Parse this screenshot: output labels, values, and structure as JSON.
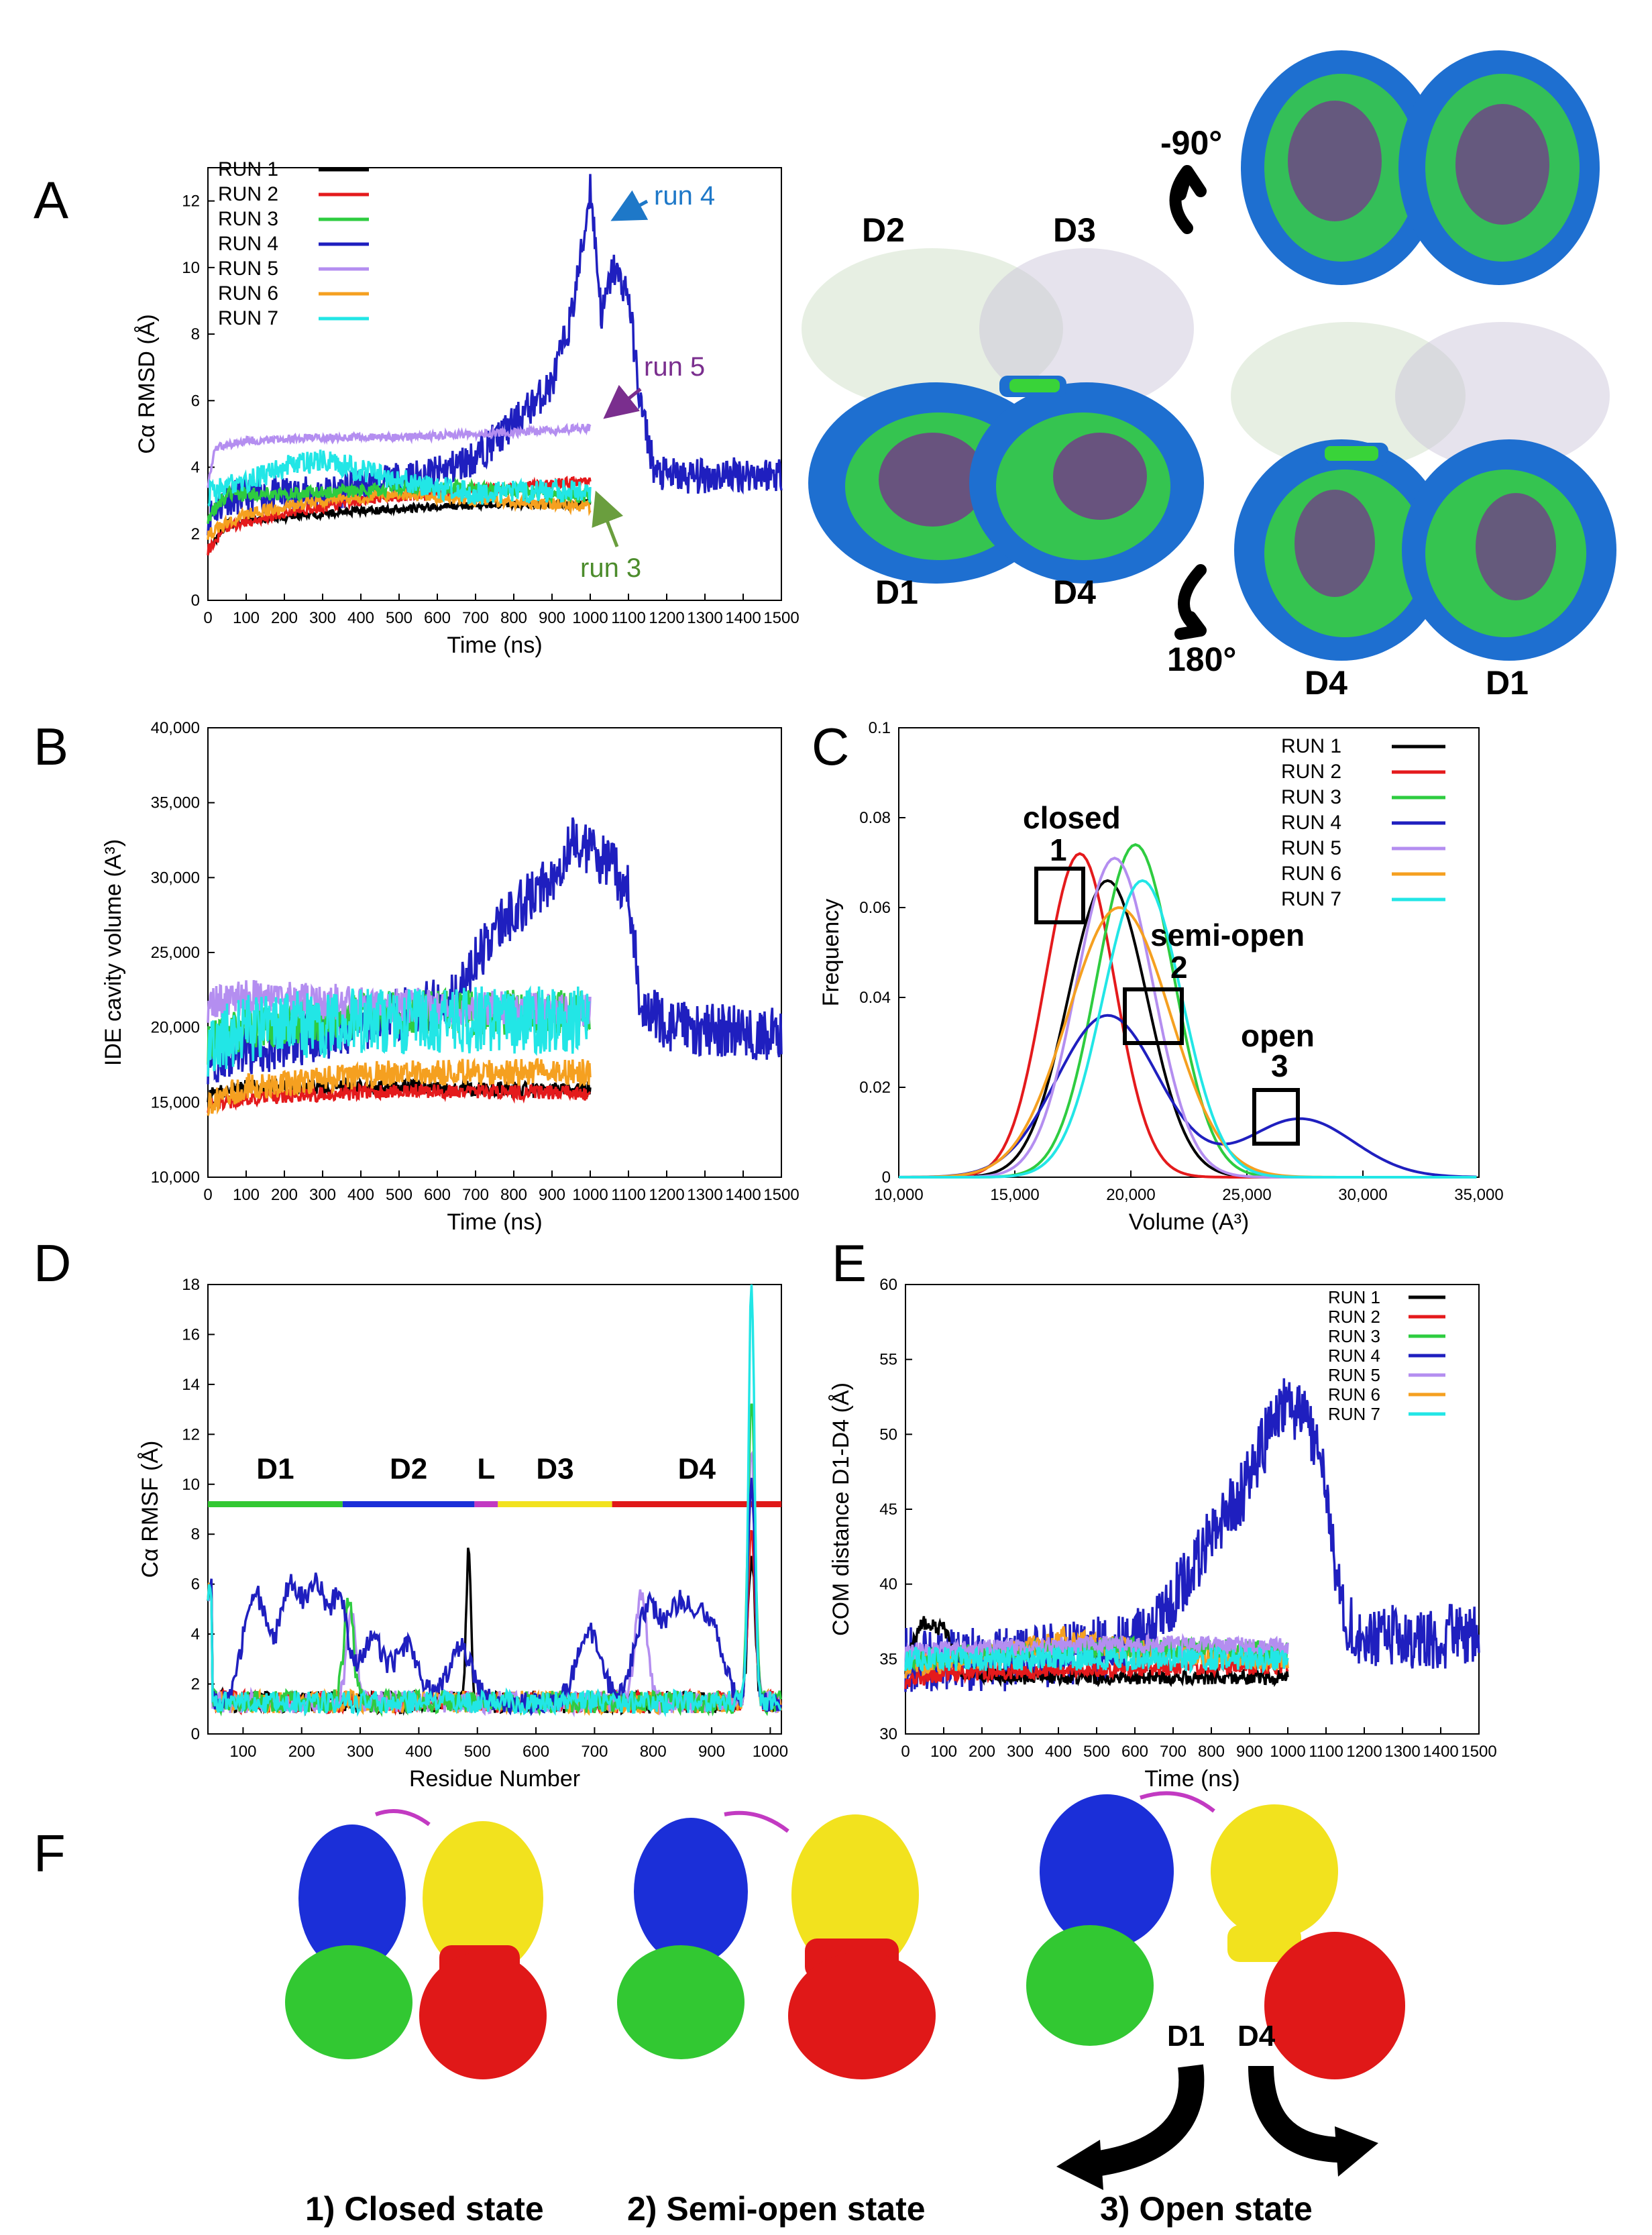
{
  "panel_labels": [
    "A",
    "B",
    "C",
    "D",
    "E",
    "F"
  ],
  "colors": {
    "RUN 1": "#000000",
    "RUN 2": "#e41a1c",
    "RUN 3": "#2ecc40",
    "RUN 4": "#1f1fbf",
    "RUN 5": "#b48ef0",
    "RUN 6": "#f5a020",
    "RUN 7": "#22e6e6",
    "protein_blue": "#1e6fd0",
    "protein_green": "#39d339",
    "protein_purple": "#7a2e8e",
    "domain_D1": "#32c832",
    "domain_D2": "#1b2fd8",
    "domain_L": "#c23ac2",
    "domain_D3": "#f2e21e",
    "domain_D4": "#e01818"
  },
  "chart_data": [
    {
      "id": "A",
      "type": "line",
      "title": "",
      "xlabel": "Time (ns)",
      "ylabel": "Cα RMSD (Å)",
      "xlim": [
        0,
        1500
      ],
      "ylim": [
        0,
        13
      ],
      "xticks": [
        "0",
        "100",
        "200",
        "300",
        "400",
        "500",
        "600",
        "700",
        "800",
        "900",
        "1000",
        "1100",
        "1200",
        "1300",
        "1400",
        "1500"
      ],
      "yticks": [
        "0",
        "2",
        "4",
        "6",
        "8",
        "10",
        "12"
      ],
      "legend": [
        "RUN 1",
        "RUN 2",
        "RUN 3",
        "RUN 4",
        "RUN 5",
        "RUN 6",
        "RUN 7"
      ],
      "series": [
        {
          "name": "RUN 1",
          "pts": [
            [
              0,
              1.5
            ],
            [
              50,
              2.3
            ],
            [
              200,
              2.5
            ],
            [
              400,
              2.7
            ],
            [
              600,
              2.8
            ],
            [
              800,
              2.9
            ],
            [
              1000,
              2.9
            ]
          ],
          "noise": 0.12
        },
        {
          "name": "RUN 2",
          "pts": [
            [
              0,
              1.5
            ],
            [
              50,
              2.2
            ],
            [
              200,
              2.6
            ],
            [
              400,
              3.0
            ],
            [
              600,
              3.2
            ],
            [
              800,
              3.4
            ],
            [
              1000,
              3.6
            ]
          ],
          "noise": 0.15
        },
        {
          "name": "RUN 3",
          "pts": [
            [
              0,
              2.5
            ],
            [
              50,
              3.2
            ],
            [
              200,
              3.2
            ],
            [
              400,
              3.3
            ],
            [
              600,
              3.4
            ],
            [
              800,
              3.3
            ],
            [
              1000,
              3.1
            ]
          ],
          "noise": 0.2
        },
        {
          "name": "RUN 4",
          "pts": [
            [
              0,
              2.5
            ],
            [
              50,
              3.1
            ],
            [
              300,
              3.2
            ],
            [
              600,
              3.8
            ],
            [
              700,
              4.3
            ],
            [
              800,
              5.3
            ],
            [
              900,
              6.5
            ],
            [
              950,
              8.5
            ],
            [
              985,
              11.0
            ],
            [
              1000,
              12.5
            ],
            [
              1030,
              8.5
            ],
            [
              1060,
              10.0
            ],
            [
              1100,
              9.2
            ],
            [
              1130,
              6.0
            ],
            [
              1170,
              3.8
            ],
            [
              1250,
              3.7
            ],
            [
              1400,
              3.8
            ],
            [
              1500,
              3.8
            ]
          ],
          "noise": 0.55
        },
        {
          "name": "RUN 5",
          "pts": [
            [
              0,
              3.5
            ],
            [
              20,
              4.6
            ],
            [
              100,
              4.8
            ],
            [
              300,
              4.9
            ],
            [
              500,
              4.9
            ],
            [
              700,
              5.0
            ],
            [
              900,
              5.1
            ],
            [
              1000,
              5.2
            ]
          ],
          "noise": 0.12
        },
        {
          "name": "RUN 6",
          "pts": [
            [
              0,
              2.0
            ],
            [
              100,
              2.6
            ],
            [
              300,
              3.0
            ],
            [
              500,
              3.2
            ],
            [
              700,
              3.0
            ],
            [
              900,
              2.9
            ],
            [
              1000,
              2.8
            ]
          ],
          "noise": 0.18
        },
        {
          "name": "RUN 7",
          "pts": [
            [
              0,
              3.2
            ],
            [
              100,
              3.6
            ],
            [
              200,
              4.0
            ],
            [
              300,
              4.2
            ],
            [
              500,
              3.6
            ],
            [
              700,
              3.2
            ],
            [
              900,
              3.3
            ],
            [
              1000,
              3.3
            ]
          ],
          "noise": 0.35
        }
      ],
      "annotations": [
        {
          "text": "run 4",
          "color": "#1e78c8"
        },
        {
          "text": "run 5",
          "color": "#7a2e8e"
        },
        {
          "text": "run 3",
          "color": "#4c8c2c"
        }
      ]
    },
    {
      "id": "B",
      "type": "line",
      "xlabel": "Time (ns)",
      "ylabel": "IDE cavity volume (A³)",
      "xlim": [
        0,
        1500
      ],
      "ylim": [
        10000,
        40000
      ],
      "xticks": [
        "0",
        "100",
        "200",
        "300",
        "400",
        "500",
        "600",
        "700",
        "800",
        "900",
        "1000",
        "1100",
        "1200",
        "1300",
        "1400",
        "1500"
      ],
      "yticks": [
        "10,000",
        "15,000",
        "20,000",
        "25,000",
        "30,000",
        "35,000",
        "40,000"
      ],
      "series": [
        {
          "name": "RUN 1",
          "pts": [
            [
              0,
              15500
            ],
            [
              100,
              16000
            ],
            [
              500,
              16000
            ],
            [
              1000,
              15800
            ]
          ],
          "noise": 500
        },
        {
          "name": "RUN 2",
          "pts": [
            [
              0,
              14800
            ],
            [
              100,
              15300
            ],
            [
              500,
              15800
            ],
            [
              1000,
              15600
            ]
          ],
          "noise": 500
        },
        {
          "name": "RUN 3",
          "pts": [
            [
              0,
              19000
            ],
            [
              100,
              20000
            ],
            [
              500,
              21000
            ],
            [
              1000,
              21000
            ]
          ],
          "noise": 1500
        },
        {
          "name": "RUN 4",
          "pts": [
            [
              0,
              18000
            ],
            [
              300,
              19500
            ],
            [
              650,
              22000
            ],
            [
              750,
              26500
            ],
            [
              900,
              30000
            ],
            [
              950,
              32500
            ],
            [
              1050,
              31000
            ],
            [
              1100,
              29000
            ],
            [
              1130,
              22000
            ],
            [
              1200,
              20000
            ],
            [
              1500,
              19500
            ]
          ],
          "noise": 1800
        },
        {
          "name": "RUN 5",
          "pts": [
            [
              0,
              21500
            ],
            [
              100,
              22000
            ],
            [
              500,
              21500
            ],
            [
              1000,
              21000
            ]
          ],
          "noise": 1200
        },
        {
          "name": "RUN 6",
          "pts": [
            [
              0,
              15000
            ],
            [
              100,
              16000
            ],
            [
              500,
              17000
            ],
            [
              1000,
              17000
            ]
          ],
          "noise": 900
        },
        {
          "name": "RUN 7",
          "pts": [
            [
              0,
              19000
            ],
            [
              100,
              20000
            ],
            [
              500,
              20500
            ],
            [
              1000,
              20500
            ]
          ],
          "noise": 2300
        }
      ]
    },
    {
      "id": "C",
      "type": "line",
      "xlabel": "Volume (A³)",
      "ylabel": "Frequency",
      "xlim": [
        10000,
        35000
      ],
      "ylim": [
        0,
        0.1
      ],
      "xticks": [
        "10,000",
        "15,000",
        "20,000",
        "25,000",
        "30,000",
        "35,000"
      ],
      "yticks": [
        "0",
        "0.02",
        "0.04",
        "0.06",
        "0.08",
        "0.1"
      ],
      "legend": [
        "RUN 1",
        "RUN 2",
        "RUN 3",
        "RUN 4",
        "RUN 5",
        "RUN 6",
        "RUN 7"
      ],
      "series": [
        {
          "name": "RUN 1",
          "gauss": [
            [
              0.066,
              19000,
              1700
            ]
          ]
        },
        {
          "name": "RUN 2",
          "gauss": [
            [
              0.072,
              17800,
              1500
            ]
          ]
        },
        {
          "name": "RUN 3",
          "gauss": [
            [
              0.074,
              20200,
              1650
            ]
          ]
        },
        {
          "name": "RUN 4",
          "gauss": [
            [
              0.036,
              19000,
              2200
            ],
            [
              0.013,
              27300,
              2300
            ]
          ]
        },
        {
          "name": "RUN 5",
          "gauss": [
            [
              0.071,
              19300,
              1650
            ]
          ]
        },
        {
          "name": "RUN 6",
          "gauss": [
            [
              0.06,
              19500,
              2200
            ]
          ]
        },
        {
          "name": "RUN 7",
          "gauss": [
            [
              0.066,
              20500,
              1700
            ]
          ]
        }
      ],
      "annotations": [
        {
          "label": "closed",
          "num": "1"
        },
        {
          "label": "semi-open",
          "num": "2"
        },
        {
          "label": "open",
          "num": "3"
        }
      ]
    },
    {
      "id": "D",
      "type": "line",
      "xlabel": "Residue Number",
      "ylabel": "Cα RMSF (Å)",
      "xlim": [
        40,
        1019
      ],
      "ylim": [
        0,
        18
      ],
      "xticks": [
        "100",
        "200",
        "300",
        "400",
        "500",
        "600",
        "700",
        "800",
        "900",
        "1000"
      ],
      "yticks": [
        "0",
        "2",
        "4",
        "6",
        "8",
        "10",
        "12",
        "14",
        "16",
        "18"
      ],
      "domains": [
        {
          "name": "D1",
          "start": 40,
          "end": 270,
          "color": "#32c832"
        },
        {
          "name": "D2",
          "start": 270,
          "end": 495,
          "color": "#1b2fd8"
        },
        {
          "name": "L",
          "start": 495,
          "end": 535,
          "color": "#c23ac2"
        },
        {
          "name": "D3",
          "start": 535,
          "end": 730,
          "color": "#f2e21e"
        },
        {
          "name": "D4",
          "start": 730,
          "end": 1019,
          "color": "#e01818"
        }
      ]
    },
    {
      "id": "E",
      "type": "line",
      "xlabel": "Time (ns)",
      "ylabel": "COM distance D1-D4 (Å)",
      "xlim": [
        0,
        1500
      ],
      "ylim": [
        30,
        60
      ],
      "xticks": [
        "0",
        "100",
        "200",
        "300",
        "400",
        "500",
        "600",
        "700",
        "800",
        "900",
        "1000",
        "1100",
        "1200",
        "1300",
        "1400",
        "1500"
      ],
      "yticks": [
        "30",
        "35",
        "40",
        "45",
        "50",
        "55",
        "60"
      ],
      "legend": [
        "RUN 1",
        "RUN 2",
        "RUN 3",
        "RUN 4",
        "RUN 5",
        "RUN 6",
        "RUN 7"
      ],
      "series": [
        {
          "name": "RUN 1",
          "pts": [
            [
              0,
              34.5
            ],
            [
              40,
              37.5
            ],
            [
              100,
              37
            ],
            [
              150,
              34
            ],
            [
              300,
              33.8
            ],
            [
              600,
              33.8
            ],
            [
              1000,
              33.8
            ]
          ],
          "noise": 0.5
        },
        {
          "name": "RUN 2",
          "pts": [
            [
              0,
              33.5
            ],
            [
              100,
              34
            ],
            [
              500,
              34.3
            ],
            [
              1000,
              34.5
            ]
          ],
          "noise": 0.5
        },
        {
          "name": "RUN 3",
          "pts": [
            [
              0,
              35
            ],
            [
              300,
              35.5
            ],
            [
              600,
              35.8
            ],
            [
              1000,
              35.5
            ]
          ],
          "noise": 0.7
        },
        {
          "name": "RUN 4",
          "pts": [
            [
              0,
              35
            ],
            [
              300,
              35
            ],
            [
              600,
              36
            ],
            [
              700,
              39
            ],
            [
              800,
              43
            ],
            [
              900,
              47
            ],
            [
              980,
              52
            ],
            [
              1050,
              51
            ],
            [
              1100,
              47
            ],
            [
              1140,
              38
            ],
            [
              1200,
              36.5
            ],
            [
              1500,
              36.5
            ]
          ],
          "noise": 2.2
        },
        {
          "name": "RUN 5",
          "pts": [
            [
              0,
              35.5
            ],
            [
              300,
              35.8
            ],
            [
              600,
              36
            ],
            [
              1000,
              35.8
            ]
          ],
          "noise": 0.6
        },
        {
          "name": "RUN 6",
          "pts": [
            [
              0,
              34.5
            ],
            [
              300,
              35.5
            ],
            [
              400,
              36.5
            ],
            [
              600,
              35.5
            ],
            [
              1000,
              35
            ]
          ],
          "noise": 0.8
        },
        {
          "name": "RUN 7",
          "pts": [
            [
              0,
              35
            ],
            [
              300,
              35
            ],
            [
              600,
              35
            ],
            [
              1000,
              35
            ]
          ],
          "noise": 0.8
        }
      ]
    }
  ],
  "structure_labels": {
    "front": [
      "D2",
      "D3",
      "D1",
      "D4"
    ],
    "rotated_top": "-90°",
    "rotated_bottom": "180°",
    "bottom_domains": [
      "D4",
      "D1"
    ]
  },
  "panel_f": {
    "captions": [
      "1) Closed state",
      "2) Semi-open state",
      "3) Open state"
    ],
    "open_labels": [
      "D1",
      "D4"
    ]
  }
}
